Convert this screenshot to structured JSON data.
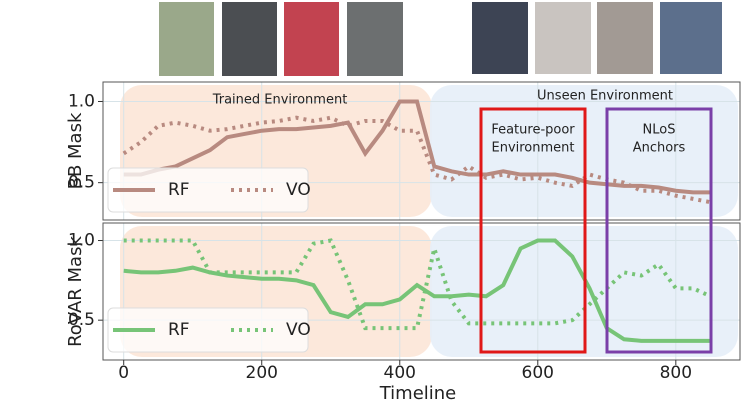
{
  "chart_data": [
    {
      "type": "line",
      "ylabel": "BB Mask",
      "x": [
        0,
        25,
        50,
        75,
        100,
        125,
        150,
        175,
        200,
        225,
        250,
        275,
        300,
        325,
        350,
        375,
        400,
        425,
        450,
        475,
        500,
        525,
        550,
        575,
        600,
        625,
        650,
        675,
        700,
        725,
        750,
        775,
        800,
        825,
        850
      ],
      "series": [
        {
          "name": "RF",
          "color": "#b88a80",
          "style": "solid",
          "values": [
            0.55,
            0.55,
            0.58,
            0.6,
            0.65,
            0.7,
            0.78,
            0.8,
            0.82,
            0.83,
            0.83,
            0.84,
            0.85,
            0.87,
            0.68,
            0.82,
            1.0,
            1.0,
            0.6,
            0.57,
            0.55,
            0.55,
            0.57,
            0.55,
            0.55,
            0.55,
            0.53,
            0.5,
            0.49,
            0.48,
            0.48,
            0.47,
            0.45,
            0.44,
            0.44
          ]
        },
        {
          "name": "VO",
          "color": "#b88a80",
          "style": "dotted",
          "values": [
            0.68,
            0.75,
            0.85,
            0.87,
            0.85,
            0.82,
            0.83,
            0.85,
            0.87,
            0.88,
            0.9,
            0.88,
            0.9,
            0.85,
            0.88,
            0.88,
            0.82,
            0.82,
            0.55,
            0.52,
            0.6,
            0.53,
            0.55,
            0.52,
            0.53,
            0.5,
            0.48,
            0.55,
            0.52,
            0.5,
            0.45,
            0.45,
            0.42,
            0.4,
            0.38
          ]
        }
      ],
      "xlim": [
        -30,
        893
      ],
      "ylim": [
        0.27,
        1.12
      ],
      "yticks": [
        {
          "value": 0.5,
          "label": "0.5"
        },
        {
          "value": 1,
          "label": "1.0"
        }
      ],
      "grid": true,
      "annotations": [
        "Trained Environment",
        "Unseen Environment",
        "Feature-poor",
        "Environment",
        "NLoS",
        "Anchors"
      ]
    },
    {
      "type": "line",
      "ylabel": "RoVAR Mask",
      "xlabel": "Timeline",
      "x": [
        0,
        25,
        50,
        75,
        100,
        125,
        150,
        175,
        200,
        225,
        250,
        275,
        300,
        325,
        350,
        375,
        400,
        425,
        450,
        475,
        500,
        525,
        550,
        575,
        600,
        625,
        650,
        675,
        700,
        725,
        750,
        775,
        800,
        825,
        850
      ],
      "series": [
        {
          "name": "RF",
          "color": "#77c477",
          "style": "solid",
          "values": [
            0.81,
            0.8,
            0.8,
            0.81,
            0.83,
            0.8,
            0.78,
            0.77,
            0.76,
            0.76,
            0.75,
            0.72,
            0.55,
            0.52,
            0.6,
            0.6,
            0.63,
            0.72,
            0.65,
            0.65,
            0.66,
            0.65,
            0.72,
            0.95,
            1.0,
            1.0,
            0.9,
            0.7,
            0.45,
            0.38,
            0.37,
            0.37,
            0.37,
            0.37,
            0.37
          ]
        },
        {
          "name": "VO",
          "color": "#77c477",
          "style": "dotted",
          "values": [
            1.0,
            1.0,
            1.0,
            1.0,
            1.0,
            0.8,
            0.8,
            0.8,
            0.8,
            0.8,
            0.8,
            0.98,
            1.0,
            0.75,
            0.45,
            0.45,
            0.45,
            0.45,
            0.95,
            0.62,
            0.48,
            0.48,
            0.48,
            0.48,
            0.48,
            0.48,
            0.5,
            0.6,
            0.7,
            0.8,
            0.78,
            0.85,
            0.7,
            0.7,
            0.65
          ]
        }
      ],
      "xlim": [
        -30,
        893
      ],
      "ylim": [
        0.25,
        1.11
      ],
      "xticks": [
        0,
        200,
        400,
        600,
        800
      ],
      "yticks": [
        {
          "value": 0.5,
          "label": "0.5"
        },
        {
          "value": 1,
          "label": "1.0"
        }
      ],
      "grid": true
    }
  ]
}
